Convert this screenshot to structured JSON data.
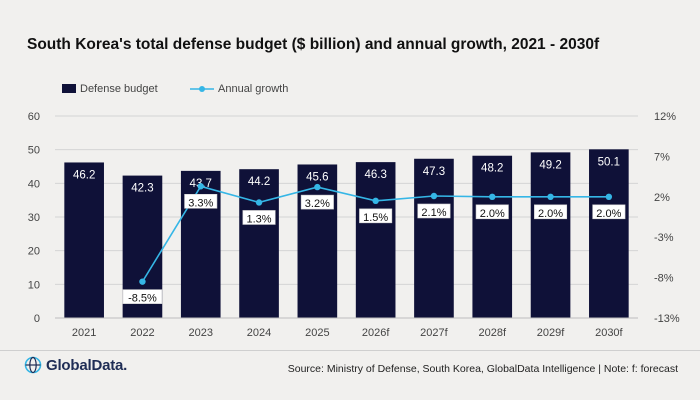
{
  "title": "South Korea's total defense budget ($ billion) and annual growth, 2021 - 2030f",
  "source": "Source: Ministry of Defense, South Korea, GlobalData Intelligence | Note: f: forecast",
  "logo_text": "GlobalData.",
  "colors": {
    "bar": "#0f1138",
    "line": "#35b6e6",
    "background": "#f1f0ee",
    "grid": "#d4d4d4",
    "text": "#444444"
  },
  "chart_data": {
    "type": "bar",
    "title": "South Korea's total defense budget ($ billion) and annual growth, 2021 - 2030f",
    "categories": [
      "2021",
      "2022",
      "2023",
      "2024",
      "2025",
      "2026f",
      "2027f",
      "2028f",
      "2029f",
      "2030f"
    ],
    "series": [
      {
        "name": "Defense budget",
        "type": "bar",
        "axis": "left",
        "values": [
          46.2,
          42.3,
          43.7,
          44.2,
          45.6,
          46.3,
          47.3,
          48.2,
          49.2,
          50.1
        ],
        "labels": [
          "46.2",
          "42.3",
          "43.7",
          "44.2",
          "45.6",
          "46.3",
          "47.3",
          "48.2",
          "49.2",
          "50.1"
        ]
      },
      {
        "name": "Annual growth",
        "type": "line",
        "axis": "right",
        "values": [
          null,
          -8.5,
          3.3,
          1.3,
          3.2,
          1.5,
          2.1,
          2.0,
          2.0,
          2.0
        ],
        "labels": [
          "",
          "-8.5%",
          "3.3%",
          "1.3%",
          "3.2%",
          "1.5%",
          "2.1%",
          "2.0%",
          "2.0%",
          "2.0%"
        ]
      }
    ],
    "y_left": {
      "min": 0,
      "max": 60,
      "ticks": [
        "0",
        "10",
        "20",
        "30",
        "40",
        "50",
        "60"
      ]
    },
    "y_right": {
      "min": -13,
      "max": 12,
      "ticks": [
        "-13%",
        "-8%",
        "-3%",
        "2%",
        "7%",
        "12%"
      ]
    },
    "legend": {
      "position": "top-left",
      "items": [
        "Defense budget",
        "Annual growth"
      ]
    },
    "grid": true
  }
}
